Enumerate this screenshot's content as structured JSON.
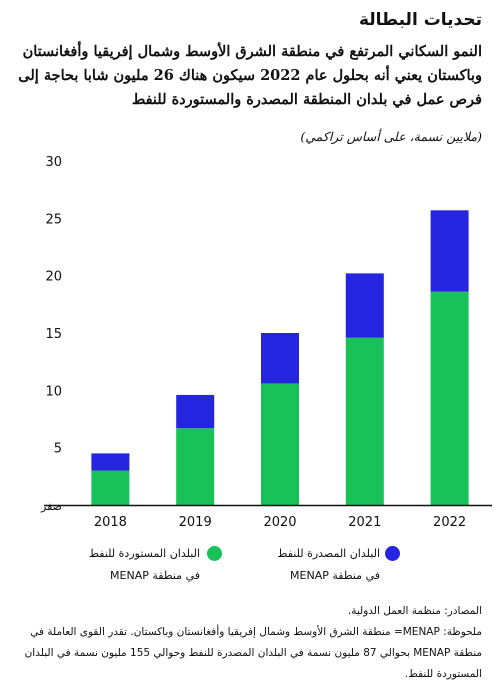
{
  "title": "تحديات البطالة",
  "subtitle": "النمو السكاني المرتفع في منطقة الشرق الأوسط وشمال إفريقيا وأفغانستان وباكستان يعني أنه بحلول عام 2022 سيكون هناك 26 مليون شابا بحاجة إلى فرص عمل في بلدان المنطقة المصدرة والمستوردة للنفط",
  "unit_label": "(ملايين نسمة، على أساس تراكمي)",
  "legend": {
    "imported_line1": "البلدان المستوردة للنفط",
    "imported_line2": "في منطقة MENAP",
    "exported_line1": "البلدان المصدرة للنفط",
    "exported_line2": "في منطقة MENAP"
  },
  "notes": {
    "source": "المصادر: منظمة العمل الدولية.",
    "note": "ملحوظة: MENAP= منطقة الشرق الأوسط وشمال إفريقيا وأفغانستان وباكستان. تقدر القوى العاملة في منطقة MENAP بحوالي 87 مليون نسمة في البلدان المصدرة للنفط وحوالي 155 مليون نسمة في البلدان المستوردة للنفط."
  },
  "colors": {
    "imported": "#19c159",
    "exported": "#2525e0"
  },
  "chart_data": {
    "type": "bar",
    "stacked": true,
    "categories": [
      "2018",
      "2019",
      "2020",
      "2021",
      "2022"
    ],
    "series": [
      {
        "name": "البلدان المستوردة للنفط في منطقة MENAP",
        "values": [
          3.0,
          6.7,
          10.6,
          14.6,
          18.6
        ]
      },
      {
        "name": "البلدان المصدرة للنفط في منطقة MENAP",
        "values": [
          1.5,
          2.9,
          4.4,
          5.6,
          7.1
        ]
      }
    ],
    "yticks": [
      "صفر",
      "5",
      "10",
      "15",
      "20",
      "25",
      "30"
    ],
    "ylim": [
      0,
      30
    ],
    "grid": false
  }
}
